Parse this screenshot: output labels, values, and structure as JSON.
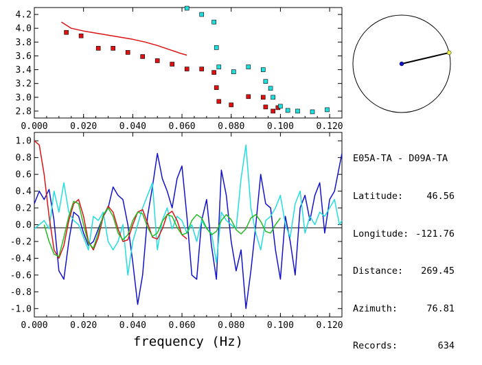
{
  "info": {
    "station_pair": "E05A-TA - D09A-TA",
    "rows": [
      {
        "label": "Latitude:",
        "value": "46.56"
      },
      {
        "label": "Longitude:",
        "value": "-121.76"
      },
      {
        "label": "Distance:",
        "value": "269.45"
      },
      {
        "label": "Azimuth:",
        "value": "76.81"
      },
      {
        "label": "Records:",
        "value": "634"
      }
    ]
  },
  "colors": {
    "red": "#dd1111",
    "cyan": "#22dddd",
    "blue": "#1111cc",
    "green": "#22bb22",
    "axis": "#000000"
  },
  "chart_data": [
    {
      "type": "scatter",
      "title": "",
      "xlabel": "",
      "ylabel": "",
      "xlim": [
        0.0,
        0.125
      ],
      "ylim": [
        2.7,
        4.3
      ],
      "x_ticks": [
        "0.000",
        "0.020",
        "0.040",
        "0.060",
        "0.080",
        "0.100",
        "0.120"
      ],
      "y_ticks": [
        "2.8",
        "3.0",
        "3.2",
        "3.4",
        "3.6",
        "3.8",
        "4.0",
        "4.2"
      ],
      "series": [
        {
          "kind": "line",
          "color": "red",
          "x": [
            0.011,
            0.015,
            0.02,
            0.025,
            0.03,
            0.035,
            0.04,
            0.045,
            0.05,
            0.055,
            0.06,
            0.062
          ],
          "y": [
            4.09,
            4.0,
            3.96,
            3.93,
            3.9,
            3.87,
            3.84,
            3.8,
            3.75,
            3.69,
            3.63,
            3.61
          ]
        },
        {
          "kind": "markers",
          "color": "red",
          "x": [
            0.013,
            0.019,
            0.026,
            0.032,
            0.038,
            0.044,
            0.05,
            0.056,
            0.062,
            0.068,
            0.073,
            0.074,
            0.075,
            0.08,
            0.087,
            0.093,
            0.094,
            0.097,
            0.099
          ],
          "y": [
            3.94,
            3.89,
            3.71,
            3.71,
            3.65,
            3.59,
            3.53,
            3.48,
            3.41,
            3.41,
            3.36,
            3.14,
            2.94,
            2.89,
            3.01,
            3.0,
            2.86,
            2.8,
            2.85
          ]
        },
        {
          "kind": "markers",
          "color": "cyan",
          "x": [
            0.062,
            0.068,
            0.073,
            0.074,
            0.075,
            0.081,
            0.087,
            0.093,
            0.094,
            0.096,
            0.097,
            0.1,
            0.103,
            0.107,
            0.113,
            0.119
          ],
          "y": [
            4.29,
            4.2,
            4.09,
            3.72,
            3.44,
            3.37,
            3.44,
            3.4,
            3.23,
            3.13,
            3.0,
            2.87,
            2.81,
            2.8,
            2.79,
            2.82
          ]
        }
      ]
    },
    {
      "type": "line",
      "title": "",
      "xlabel": "frequency (Hz)",
      "ylabel": "",
      "xlim": [
        0.0,
        0.125
      ],
      "ylim": [
        -1.1,
        1.1
      ],
      "x_ticks": [
        "0.000",
        "0.020",
        "0.040",
        "0.060",
        "0.080",
        "0.100",
        "0.120"
      ],
      "y_ticks": [
        "-1.0",
        "-0.8",
        "-0.6",
        "-0.4",
        "-0.2",
        "0.0",
        "0.2",
        "0.4",
        "0.6",
        "0.8",
        "1.0"
      ],
      "series": [
        {
          "color": "blue",
          "x": [
            0.0,
            0.002,
            0.004,
            0.006,
            0.008,
            0.01,
            0.012,
            0.014,
            0.016,
            0.018,
            0.02,
            0.022,
            0.024,
            0.026,
            0.028,
            0.03,
            0.032,
            0.034,
            0.036,
            0.038,
            0.04,
            0.042,
            0.044,
            0.046,
            0.048,
            0.05,
            0.052,
            0.054,
            0.056,
            0.058,
            0.06,
            0.062,
            0.064,
            0.066,
            0.068,
            0.07,
            0.072,
            0.074,
            0.076,
            0.078,
            0.08,
            0.082,
            0.084,
            0.086,
            0.088,
            0.09,
            0.092,
            0.094,
            0.096,
            0.098,
            0.1,
            0.102,
            0.104,
            0.106,
            0.108,
            0.11,
            0.112,
            0.114,
            0.116,
            0.118,
            0.12,
            0.122,
            0.124,
            0.125
          ],
          "y": [
            0.25,
            0.4,
            0.3,
            0.42,
            0.05,
            -0.55,
            -0.65,
            -0.2,
            0.15,
            0.1,
            -0.1,
            -0.25,
            -0.2,
            -0.05,
            0.1,
            0.2,
            0.45,
            0.35,
            0.3,
            0.0,
            -0.45,
            -0.95,
            -0.6,
            0.1,
            0.45,
            0.85,
            0.55,
            0.4,
            0.2,
            0.55,
            0.7,
            0.1,
            -0.6,
            -0.65,
            0.05,
            0.3,
            -0.25,
            -0.65,
            0.65,
            0.35,
            -0.2,
            -0.55,
            -0.3,
            -1.0,
            -0.55,
            0.0,
            0.6,
            0.25,
            0.2,
            -0.3,
            -0.65,
            0.1,
            -0.2,
            -0.6,
            0.2,
            0.35,
            0.05,
            0.35,
            0.5,
            -0.1,
            0.3,
            0.4,
            0.7,
            0.85
          ]
        },
        {
          "color": "cyan",
          "x": [
            0.0,
            0.002,
            0.004,
            0.006,
            0.008,
            0.01,
            0.012,
            0.014,
            0.016,
            0.018,
            0.02,
            0.022,
            0.024,
            0.026,
            0.028,
            0.03,
            0.032,
            0.034,
            0.036,
            0.038,
            0.04,
            0.042,
            0.044,
            0.046,
            0.048,
            0.05,
            0.052,
            0.054,
            0.056,
            0.058,
            0.06,
            0.062,
            0.064,
            0.066,
            0.068,
            0.07,
            0.072,
            0.074,
            0.076,
            0.078,
            0.08,
            0.082,
            0.084,
            0.086,
            0.088,
            0.09,
            0.092,
            0.094,
            0.096,
            0.098,
            0.1,
            0.102,
            0.104,
            0.106,
            0.108,
            0.11,
            0.112,
            0.114,
            0.116,
            0.118,
            0.12,
            0.122,
            0.124,
            0.125
          ],
          "y": [
            -0.05,
            0.0,
            0.05,
            -0.05,
            0.4,
            0.15,
            0.5,
            0.15,
            0.05,
            0.0,
            -0.15,
            -0.3,
            0.1,
            0.05,
            0.15,
            -0.2,
            -0.3,
            -0.2,
            0.0,
            -0.6,
            -0.2,
            0.0,
            0.2,
            0.35,
            0.5,
            -0.3,
            0.05,
            0.2,
            -0.05,
            0.1,
            0.05,
            -0.1,
            0.0,
            -0.2,
            0.05,
            -0.05,
            -0.1,
            -0.45,
            0.15,
            0.05,
            0.0,
            -0.05,
            0.55,
            0.95,
            0.2,
            -0.1,
            -0.3,
            0.05,
            0.1,
            0.2,
            0.35,
            0.0,
            -0.15,
            0.25,
            0.4,
            -0.1,
            0.1,
            0.0,
            0.15,
            0.1,
            0.2,
            0.3,
            0.0,
            0.05
          ]
        },
        {
          "color": "red",
          "x": [
            0.0,
            0.002,
            0.004,
            0.006,
            0.008,
            0.01,
            0.012,
            0.014,
            0.016,
            0.018,
            0.02,
            0.022,
            0.024,
            0.026,
            0.028,
            0.03,
            0.032,
            0.034,
            0.036,
            0.038,
            0.04,
            0.042,
            0.044,
            0.046,
            0.048,
            0.05,
            0.052,
            0.054,
            0.056,
            0.058,
            0.06,
            0.062
          ],
          "y": [
            1.0,
            0.95,
            0.6,
            0.1,
            -0.3,
            -0.4,
            -0.25,
            0.05,
            0.25,
            0.3,
            0.1,
            -0.2,
            -0.3,
            -0.15,
            0.1,
            0.22,
            0.15,
            -0.05,
            -0.2,
            -0.18,
            0.0,
            0.15,
            0.18,
            0.02,
            -0.15,
            -0.17,
            -0.05,
            0.12,
            0.16,
            0.05,
            -0.12,
            -0.17
          ]
        },
        {
          "color": "green",
          "x": [
            0.004,
            0.006,
            0.008,
            0.01,
            0.012,
            0.014,
            0.016,
            0.018,
            0.02,
            0.022,
            0.024,
            0.026,
            0.028,
            0.03,
            0.032,
            0.034,
            0.036,
            0.038,
            0.04,
            0.042,
            0.044,
            0.046,
            0.048,
            0.05,
            0.052,
            0.054,
            0.056,
            0.058,
            0.06,
            0.062,
            0.064,
            0.066,
            0.068,
            0.07,
            0.072,
            0.074,
            0.076,
            0.078,
            0.08,
            0.082,
            0.084,
            0.086,
            0.088,
            0.09,
            0.092,
            0.094,
            0.096,
            0.098,
            0.1
          ],
          "y": [
            0.0,
            -0.2,
            -0.35,
            -0.38,
            -0.15,
            0.1,
            0.28,
            0.25,
            0.0,
            -0.22,
            -0.28,
            -0.1,
            0.12,
            0.2,
            0.1,
            -0.1,
            -0.18,
            -0.12,
            0.05,
            0.15,
            0.13,
            -0.03,
            -0.14,
            -0.1,
            0.04,
            0.12,
            0.1,
            -0.03,
            -0.12,
            -0.1,
            0.05,
            0.12,
            0.08,
            -0.04,
            -0.12,
            -0.08,
            0.05,
            0.12,
            0.06,
            -0.06,
            -0.11,
            -0.05,
            0.08,
            0.12,
            0.04,
            -0.08,
            -0.1,
            0.0,
            0.08
          ]
        }
      ]
    }
  ],
  "azimuth_deg": 76.81
}
